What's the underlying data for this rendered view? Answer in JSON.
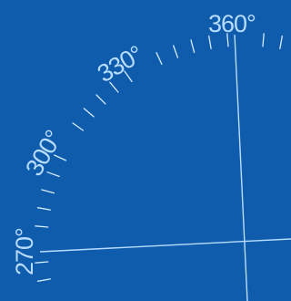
{
  "dial": {
    "colors": {
      "background": "#0f5cad",
      "tick": "#d6ecff",
      "crosshair": "#b9ddff",
      "label": "#b7dcff"
    },
    "labels": [
      {
        "id": "label-360",
        "text": "360°",
        "bearing": 360
      },
      {
        "id": "label-330",
        "text": "330°",
        "bearing": 330
      },
      {
        "id": "label-300",
        "text": "300°",
        "bearing": 300
      },
      {
        "id": "label-270",
        "text": "270°",
        "bearing": 270
      }
    ],
    "tick_interval_deg": 5
  }
}
